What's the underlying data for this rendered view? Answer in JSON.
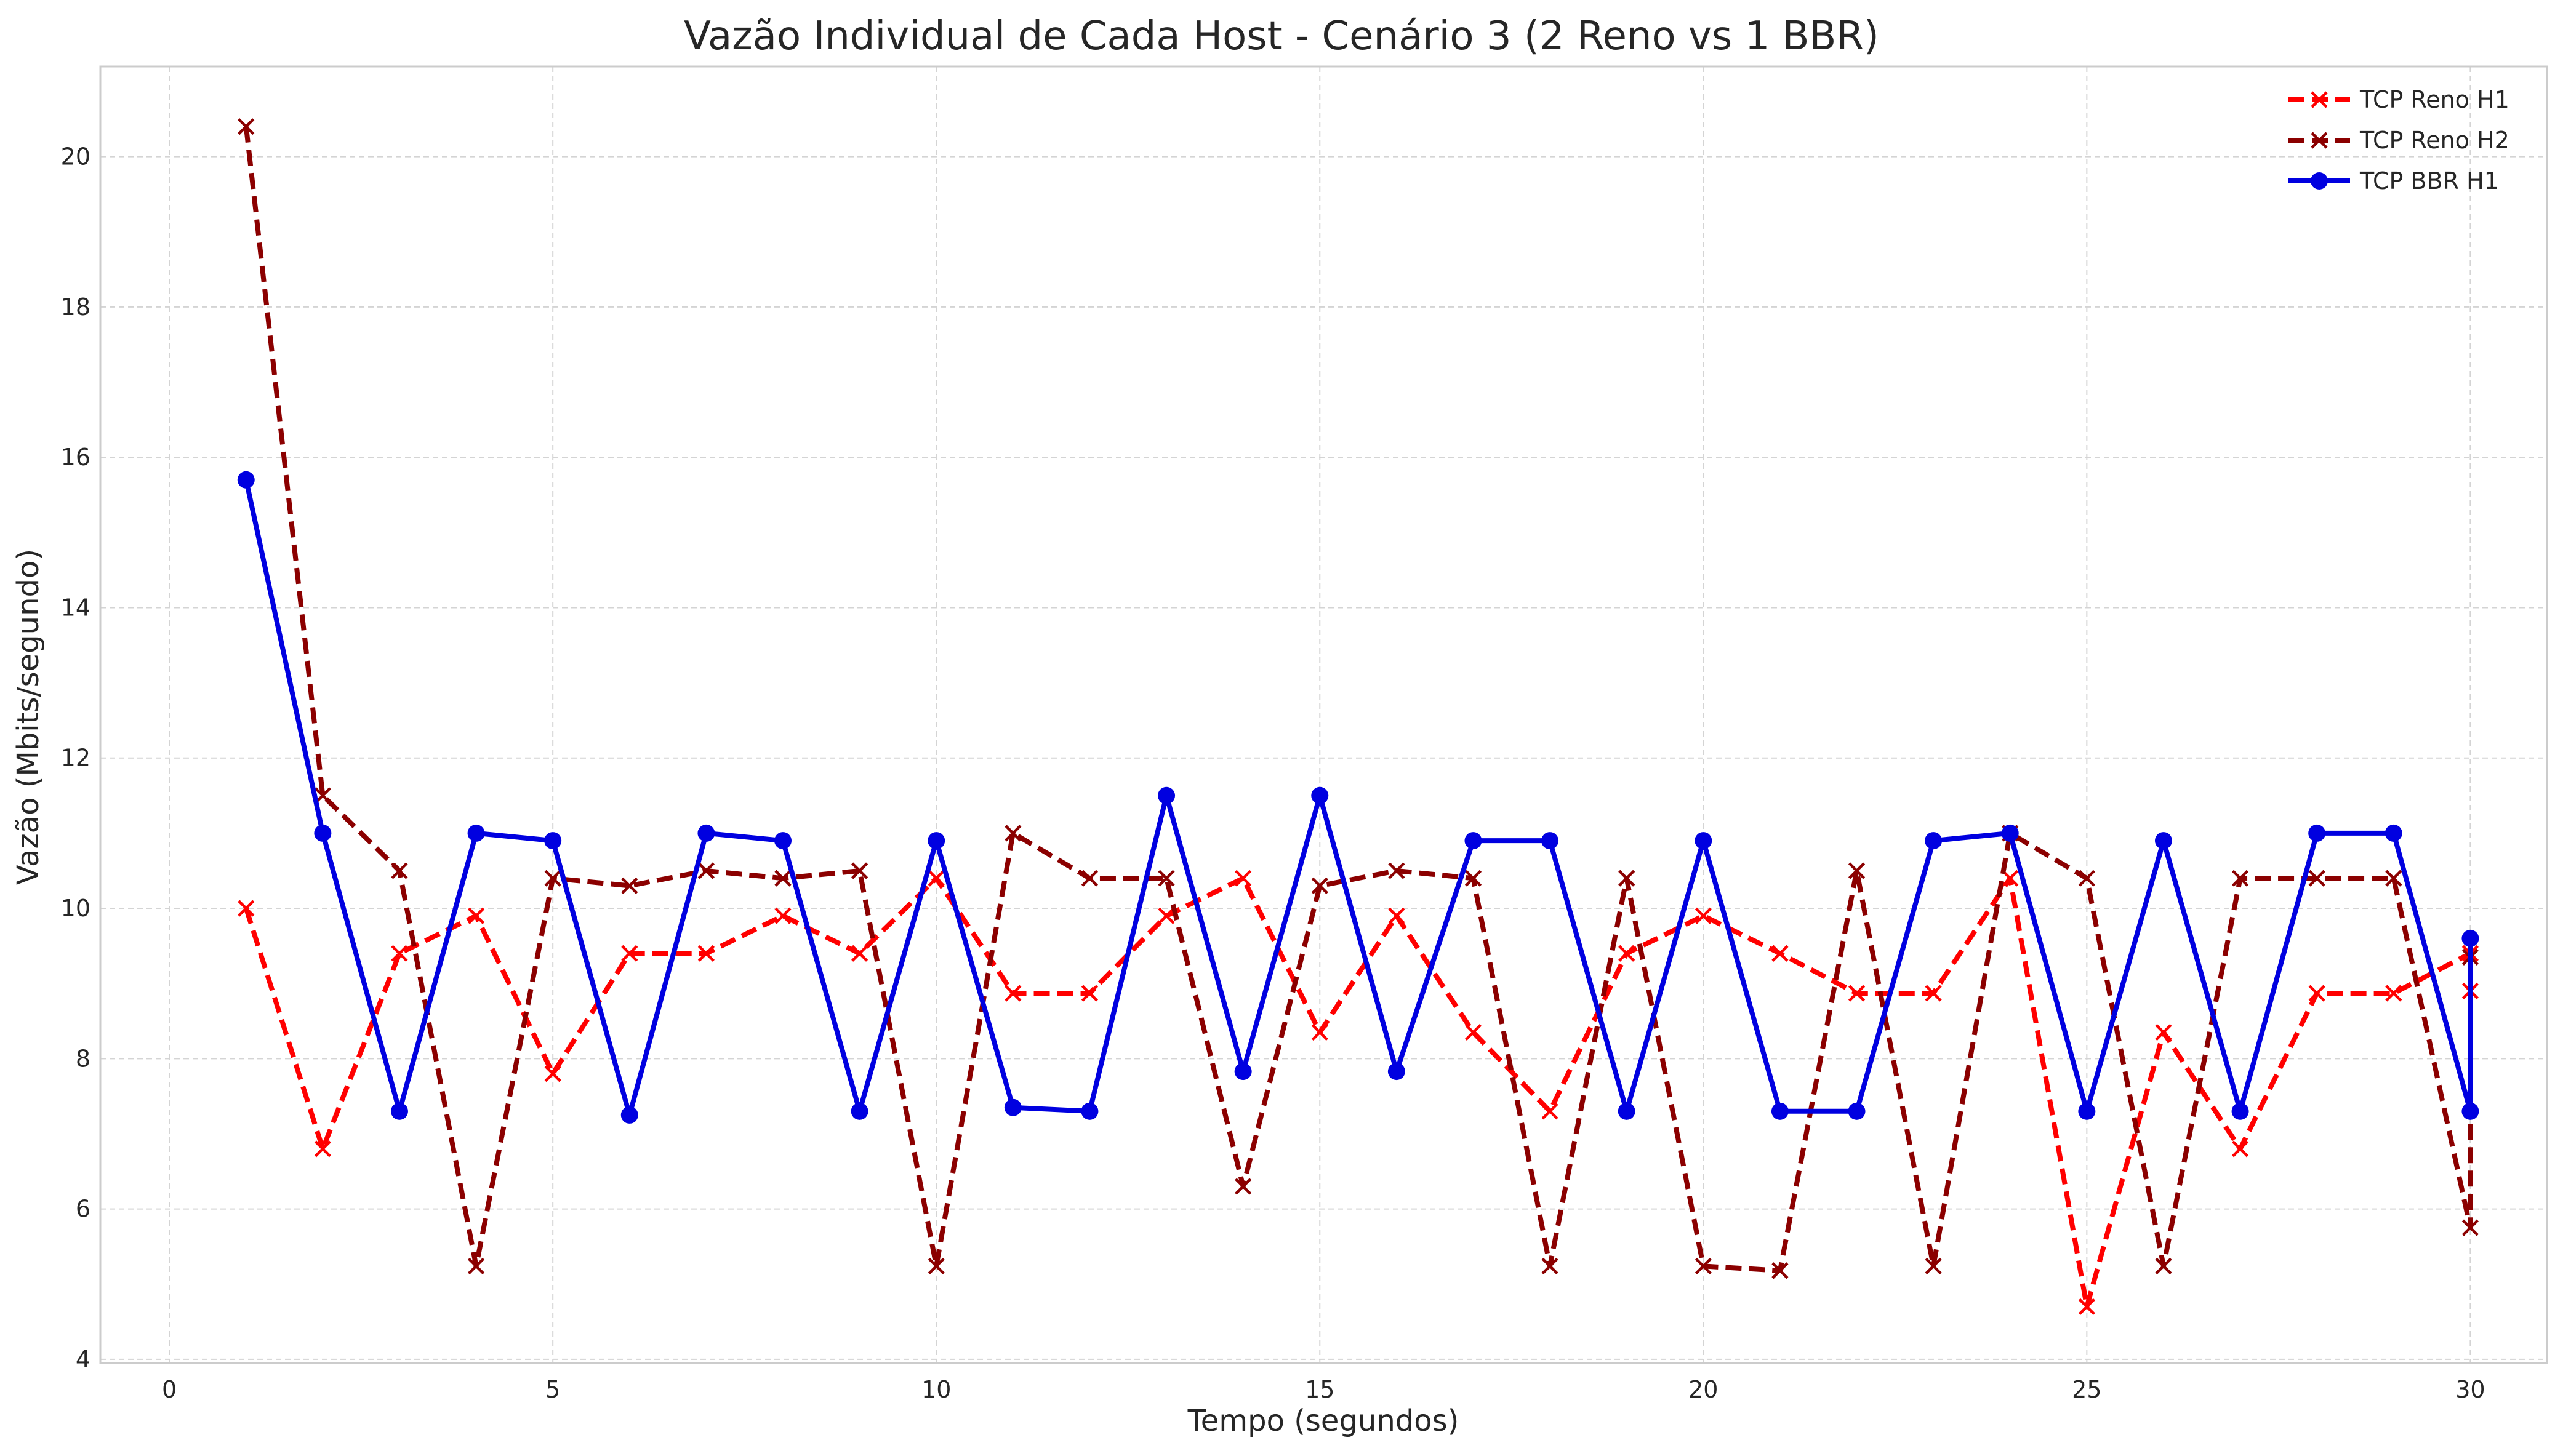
{
  "chart_data": {
    "type": "line",
    "title": "Vazão Individual de Cada Host - Cenário 3 (2 Reno vs 1 BBR)",
    "xlabel": "Tempo (segundos)",
    "ylabel": "Vazão (Mbits/segundo)",
    "xlim": [
      -0.9,
      31.0
    ],
    "ylim": [
      3.95,
      21.2
    ],
    "xticks": [
      0,
      5,
      10,
      15,
      20,
      25,
      30
    ],
    "yticks": [
      4,
      6,
      8,
      10,
      12,
      14,
      16,
      18,
      20
    ],
    "grid": true,
    "legend_position": "top-right",
    "x": [
      1,
      2,
      3,
      4,
      5,
      6,
      7,
      8,
      9,
      10,
      11,
      12,
      13,
      14,
      15,
      16,
      17,
      18,
      19,
      20,
      21,
      22,
      23,
      24,
      25,
      26,
      27,
      28,
      29,
      30
    ],
    "series": [
      {
        "name": "TCP Reno H1",
        "color": "#ff0000",
        "line_style": "dashed",
        "marker": "x",
        "values": [
          10.0,
          6.8,
          9.4,
          9.9,
          7.8,
          9.4,
          9.4,
          9.9,
          9.4,
          10.4,
          8.87,
          8.87,
          9.9,
          10.4,
          8.35,
          9.9,
          8.35,
          7.3,
          9.4,
          9.9,
          9.4,
          8.87,
          8.87,
          10.4,
          4.7,
          8.35,
          6.8,
          8.87,
          8.87,
          9.4
        ],
        "tail_point": [
          30,
          8.9
        ]
      },
      {
        "name": "TCP Reno H2",
        "color": "#8b0000",
        "line_style": "dashed",
        "marker": "x",
        "values": [
          20.4,
          11.5,
          10.5,
          5.24,
          10.4,
          10.3,
          10.5,
          10.4,
          10.5,
          5.24,
          11.0,
          10.4,
          10.4,
          6.3,
          10.3,
          10.5,
          10.4,
          5.24,
          10.4,
          5.24,
          5.18,
          10.5,
          5.24,
          11.0,
          10.4,
          5.24,
          10.4,
          10.4,
          10.4,
          5.75
        ],
        "tail_point": [
          30,
          9.35
        ]
      },
      {
        "name": "TCP BBR H1",
        "color": "#0000e0",
        "line_style": "solid",
        "marker": "circle",
        "values": [
          15.7,
          11.0,
          7.3,
          11.0,
          10.9,
          7.25,
          11.0,
          10.9,
          7.3,
          10.9,
          7.35,
          7.3,
          11.5,
          7.83,
          11.5,
          7.83,
          10.9,
          10.9,
          7.3,
          10.9,
          7.3,
          7.3,
          10.9,
          11.0,
          7.3,
          10.9,
          7.3,
          11.0,
          11.0,
          7.3
        ],
        "tail_point": [
          30,
          9.6
        ]
      }
    ]
  }
}
